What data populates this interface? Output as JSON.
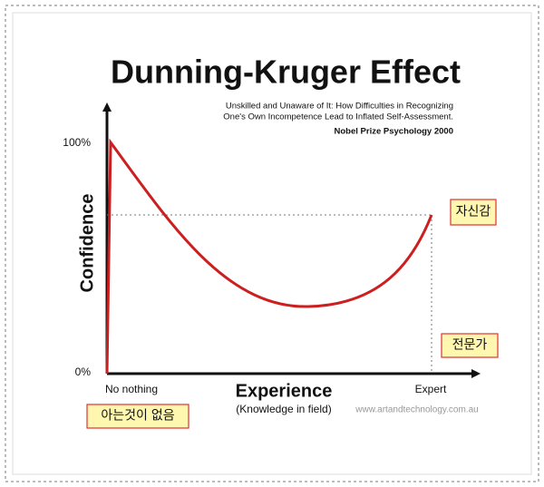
{
  "header": {
    "title": "Dunning-Kruger Effect",
    "subtitle": [
      "Unskilled and Unaware of It: How Difficulties in Recognizing",
      "One's Own Incompetence Lead to Inflated Self-Assessment."
    ],
    "credit": "Nobel Prize Psychology  2000"
  },
  "y_axis": {
    "label": "Confidence",
    "top": "100%",
    "bottom": "0%"
  },
  "x_axis": {
    "label": "Experience",
    "sublabel": "(Knowledge in field)",
    "start": "No nothing",
    "end": "Expert"
  },
  "watermark": "www.artandtechnology.com.au",
  "annotations": {
    "confidence": "자신감",
    "expert": "전문가",
    "knows_nothing": "아는것이 없음"
  }
}
